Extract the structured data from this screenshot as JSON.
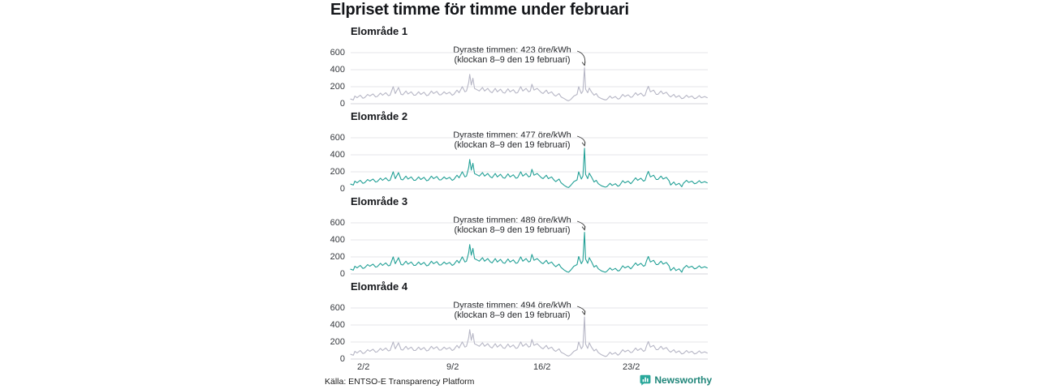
{
  "header": {
    "title": "Elpriset timme för timme under februari"
  },
  "footer": {
    "source": "Källa: ENTSO-E Transparency Platform",
    "brand": {
      "name": "Newsworthy",
      "text_color": "#1f8579",
      "icon_color": "#2aa89b"
    }
  },
  "colors": {
    "grid": "#e4e4ea",
    "zero_line": "#d6d6db",
    "gray_series": "#b6b6c5",
    "teal_series": "#22a096",
    "annotation_arrow": "#3a3a3a"
  },
  "chart_data": {
    "type": "line",
    "subtype": "small-multiples",
    "title": "Elpriset timme för timme under februari",
    "x_unit": "hours from 1 feb 00:00",
    "xlim": [
      0,
      672
    ],
    "ylim": [
      0,
      600
    ],
    "grid": "horizontal-only",
    "y_ticks": [
      0,
      200,
      400,
      600
    ],
    "x_ticks": [
      {
        "label": "2/2",
        "hour": 24
      },
      {
        "label": "9/2",
        "hour": 192
      },
      {
        "label": "16/2",
        "hour": 360
      },
      {
        "label": "23/2",
        "hour": 528
      }
    ],
    "x_hours": [
      0,
      5,
      8,
      12,
      18,
      23,
      26,
      32,
      36,
      42,
      47,
      50,
      56,
      60,
      66,
      71,
      74,
      80,
      84,
      90,
      95,
      98,
      104,
      108,
      114,
      119,
      122,
      128,
      132,
      138,
      143,
      146,
      152,
      156,
      162,
      167,
      170,
      176,
      180,
      186,
      191,
      194,
      200,
      204,
      210,
      215,
      218,
      222,
      224,
      227,
      230,
      233,
      239,
      242,
      248,
      252,
      258,
      263,
      266,
      272,
      276,
      282,
      287,
      290,
      296,
      300,
      306,
      311,
      314,
      320,
      324,
      330,
      335,
      338,
      341,
      345,
      351,
      359,
      362,
      368,
      372,
      378,
      383,
      386,
      392,
      396,
      402,
      407,
      410,
      414,
      420,
      426,
      429,
      434,
      437,
      440,
      442,
      446,
      449,
      453,
      458,
      462,
      466,
      472,
      479,
      482,
      488,
      492,
      498,
      503,
      506,
      512,
      516,
      522,
      527,
      530,
      536,
      540,
      546,
      551,
      554,
      557,
      560,
      564,
      570,
      575,
      578,
      584,
      588,
      594,
      599,
      602,
      608,
      612,
      618,
      623,
      626,
      632,
      636,
      642,
      647,
      650,
      656,
      660,
      666,
      671
    ],
    "panels": [
      {
        "title": "Elområde 1",
        "color": "#b6b6c5",
        "annotation": {
          "line1": "Dyraste timmen: 423 öre/kWh",
          "line2": "(klockan 8–9 den 19 februari)",
          "peak_value": 423,
          "peak_hour": 440
        },
        "values": [
          55,
          45,
          90,
          70,
          100,
          65,
          70,
          110,
          90,
          115,
          80,
          85,
          125,
          100,
          130,
          95,
          100,
          200,
          120,
          190,
          110,
          105,
          150,
          115,
          140,
          100,
          100,
          140,
          110,
          135,
          95,
          100,
          150,
          120,
          145,
          105,
          105,
          140,
          115,
          135,
          100,
          110,
          160,
          130,
          200,
          140,
          150,
          250,
          345,
          220,
          300,
          180,
          160,
          150,
          190,
          150,
          180,
          140,
          130,
          180,
          140,
          170,
          130,
          125,
          175,
          140,
          165,
          125,
          130,
          200,
          150,
          180,
          140,
          150,
          230,
          160,
          180,
          130,
          120,
          160,
          120,
          140,
          100,
          90,
          120,
          80,
          60,
          40,
          35,
          50,
          90,
          110,
          200,
          120,
          150,
          423,
          170,
          130,
          185,
          140,
          100,
          120,
          80,
          60,
          45,
          50,
          90,
          65,
          85,
          55,
          60,
          110,
          85,
          105,
          75,
          80,
          130,
          100,
          125,
          90,
          100,
          160,
          205,
          140,
          160,
          110,
          110,
          150,
          115,
          135,
          95,
          80,
          110,
          75,
          95,
          60,
          65,
          100,
          75,
          90,
          60,
          65,
          95,
          70,
          85,
          70
        ]
      },
      {
        "title": "Elområde 2",
        "color": "#22a096",
        "annotation": {
          "line1": "Dyraste timmen: 477 öre/kWh",
          "line2": "(klockan 8–9 den 19 februari)",
          "peak_value": 477,
          "peak_hour": 440
        },
        "values": [
          55,
          45,
          90,
          70,
          100,
          65,
          70,
          110,
          90,
          115,
          80,
          85,
          125,
          100,
          130,
          95,
          100,
          200,
          120,
          190,
          110,
          105,
          150,
          115,
          140,
          100,
          100,
          140,
          110,
          135,
          95,
          100,
          150,
          120,
          145,
          105,
          105,
          140,
          115,
          135,
          100,
          110,
          160,
          130,
          200,
          140,
          150,
          250,
          345,
          220,
          300,
          180,
          160,
          150,
          190,
          150,
          180,
          140,
          130,
          180,
          140,
          170,
          130,
          125,
          175,
          140,
          165,
          125,
          130,
          200,
          150,
          180,
          140,
          150,
          230,
          160,
          180,
          130,
          120,
          160,
          120,
          140,
          100,
          85,
          115,
          70,
          40,
          20,
          15,
          40,
          85,
          105,
          200,
          115,
          150,
          477,
          170,
          120,
          185,
          140,
          80,
          100,
          60,
          35,
          20,
          25,
          65,
          40,
          60,
          30,
          40,
          95,
          70,
          90,
          60,
          80,
          130,
          100,
          125,
          90,
          100,
          160,
          205,
          140,
          160,
          110,
          110,
          150,
          115,
          135,
          95,
          45,
          80,
          45,
          65,
          25,
          65,
          100,
          75,
          90,
          60,
          65,
          95,
          70,
          85,
          70
        ]
      },
      {
        "title": "Elområde 3",
        "color": "#22a096",
        "annotation": {
          "line1": "Dyraste timmen: 489 öre/kWh",
          "line2": "(klockan 8–9 den 19 februari)",
          "peak_value": 489,
          "peak_hour": 440
        },
        "values": [
          55,
          45,
          90,
          70,
          100,
          65,
          70,
          110,
          90,
          115,
          80,
          85,
          125,
          100,
          130,
          95,
          100,
          200,
          120,
          190,
          110,
          105,
          150,
          115,
          140,
          100,
          100,
          140,
          110,
          135,
          95,
          100,
          150,
          120,
          145,
          105,
          105,
          140,
          115,
          135,
          100,
          110,
          160,
          130,
          200,
          140,
          150,
          250,
          345,
          220,
          300,
          180,
          160,
          150,
          190,
          150,
          180,
          140,
          130,
          180,
          140,
          170,
          130,
          125,
          175,
          140,
          165,
          125,
          130,
          200,
          150,
          180,
          140,
          150,
          230,
          160,
          180,
          130,
          120,
          160,
          120,
          140,
          100,
          85,
          115,
          75,
          45,
          25,
          20,
          45,
          90,
          110,
          205,
          120,
          155,
          489,
          175,
          125,
          190,
          145,
          80,
          100,
          60,
          35,
          20,
          30,
          70,
          45,
          65,
          35,
          40,
          95,
          70,
          90,
          60,
          80,
          130,
          100,
          125,
          90,
          100,
          160,
          205,
          140,
          160,
          110,
          110,
          150,
          115,
          135,
          95,
          40,
          75,
          40,
          60,
          20,
          65,
          100,
          75,
          90,
          60,
          65,
          95,
          70,
          85,
          70
        ]
      },
      {
        "title": "Elområde 4",
        "color": "#b6b6c5",
        "annotation": {
          "line1": "Dyraste timmen: 494 öre/kWh",
          "line2": "(klockan 8–9 den 19 februari)",
          "peak_value": 494,
          "peak_hour": 440
        },
        "values": [
          55,
          45,
          90,
          70,
          100,
          65,
          70,
          110,
          90,
          115,
          80,
          85,
          125,
          100,
          130,
          95,
          100,
          200,
          120,
          190,
          110,
          105,
          150,
          115,
          140,
          100,
          100,
          140,
          110,
          135,
          95,
          100,
          150,
          120,
          145,
          105,
          105,
          140,
          115,
          135,
          100,
          110,
          160,
          130,
          200,
          140,
          150,
          250,
          345,
          220,
          300,
          180,
          160,
          150,
          190,
          150,
          180,
          140,
          130,
          180,
          140,
          170,
          130,
          125,
          175,
          140,
          165,
          125,
          130,
          200,
          150,
          180,
          140,
          150,
          230,
          160,
          180,
          130,
          120,
          160,
          120,
          140,
          100,
          90,
          120,
          80,
          60,
          40,
          35,
          50,
          90,
          110,
          200,
          120,
          150,
          494,
          175,
          125,
          190,
          140,
          95,
          115,
          75,
          50,
          30,
          35,
          80,
          55,
          75,
          45,
          60,
          110,
          85,
          105,
          75,
          80,
          130,
          100,
          125,
          90,
          100,
          160,
          205,
          140,
          160,
          110,
          110,
          150,
          115,
          135,
          95,
          80,
          110,
          75,
          95,
          60,
          65,
          100,
          75,
          90,
          60,
          65,
          95,
          70,
          85,
          70
        ]
      }
    ]
  }
}
